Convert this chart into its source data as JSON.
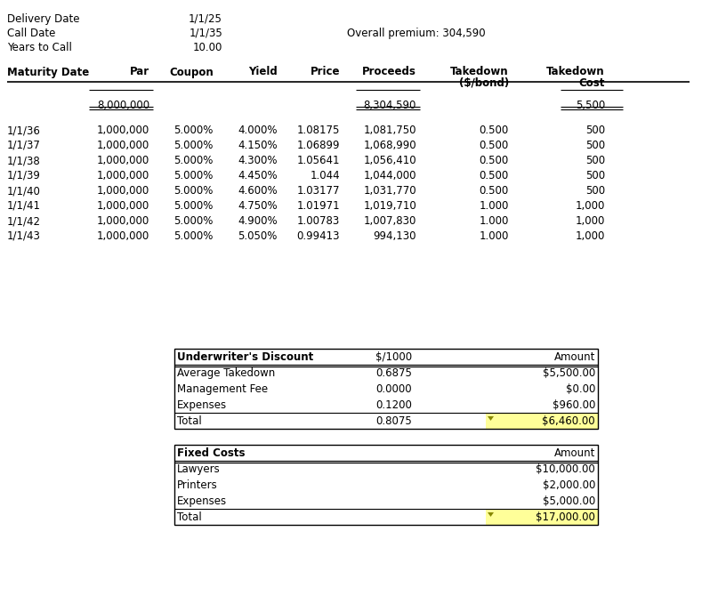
{
  "header_info": [
    [
      "Delivery Date",
      "1/1/25"
    ],
    [
      "Call Date",
      "1/1/35"
    ],
    [
      "Years to Call",
      "10.00"
    ]
  ],
  "overall_premium": "Overall premium: 304,590",
  "col_headers_line1": [
    "Maturity Date",
    "Par",
    "Coupon",
    "Yield",
    "Price",
    "Proceeds",
    "Takedown",
    "Takedown"
  ],
  "col_headers_line2": [
    "",
    "",
    "",
    "",
    "",
    "",
    "($/bond)",
    "Cost"
  ],
  "col_headers_bold": [
    true,
    true,
    true,
    true,
    true,
    true,
    true,
    true
  ],
  "totals_row": [
    "",
    "8,000,000",
    "",
    "",
    "",
    "8,304,590",
    "",
    "5,500"
  ],
  "bond_rows": [
    [
      "1/1/36",
      "1,000,000",
      "5.000%",
      "4.000%",
      "1.08175",
      "1,081,750",
      "0.500",
      "500"
    ],
    [
      "1/1/37",
      "1,000,000",
      "5.000%",
      "4.150%",
      "1.06899",
      "1,068,990",
      "0.500",
      "500"
    ],
    [
      "1/1/38",
      "1,000,000",
      "5.000%",
      "4.300%",
      "1.05641",
      "1,056,410",
      "0.500",
      "500"
    ],
    [
      "1/1/39",
      "1,000,000",
      "5.000%",
      "4.450%",
      "1.044",
      "1,044,000",
      "0.500",
      "500"
    ],
    [
      "1/1/40",
      "1,000,000",
      "5.000%",
      "4.600%",
      "1.03177",
      "1,031,770",
      "0.500",
      "500"
    ],
    [
      "1/1/41",
      "1,000,000",
      "5.000%",
      "4.750%",
      "1.01971",
      "1,019,710",
      "1.000",
      "1,000"
    ],
    [
      "1/1/42",
      "1,000,000",
      "5.000%",
      "4.900%",
      "1.00783",
      "1,007,830",
      "1.000",
      "1,000"
    ],
    [
      "1/1/43",
      "1,000,000",
      "5.000%",
      "5.050%",
      "0.99413",
      "994,130",
      "1.000",
      "1,000"
    ]
  ],
  "underwriter_table": {
    "header": [
      "Underwriter's Discount",
      "$/1000",
      "Amount"
    ],
    "rows": [
      [
        "Average Takedown",
        "0.6875",
        "$5,500.00"
      ],
      [
        "Management Fee",
        "0.0000",
        "$0.00"
      ],
      [
        "Expenses",
        "0.1200",
        "$960.00"
      ],
      [
        "Total",
        "0.8075",
        "$6,460.00"
      ]
    ],
    "highlight_row": 3,
    "highlight_color": "#ffff99"
  },
  "fixed_costs_table": {
    "header": [
      "Fixed Costs",
      "Amount"
    ],
    "rows": [
      [
        "Lawyers",
        "$10,000.00"
      ],
      [
        "Printers",
        "$2,000.00"
      ],
      [
        "Expenses",
        "$5,000.00"
      ],
      [
        "Total",
        "$17,000.00"
      ]
    ],
    "highlight_row": 3,
    "highlight_color": "#ffff99"
  },
  "bg_color": "#ffffff",
  "font_size": 8.5,
  "font_family": "DejaVu Sans"
}
